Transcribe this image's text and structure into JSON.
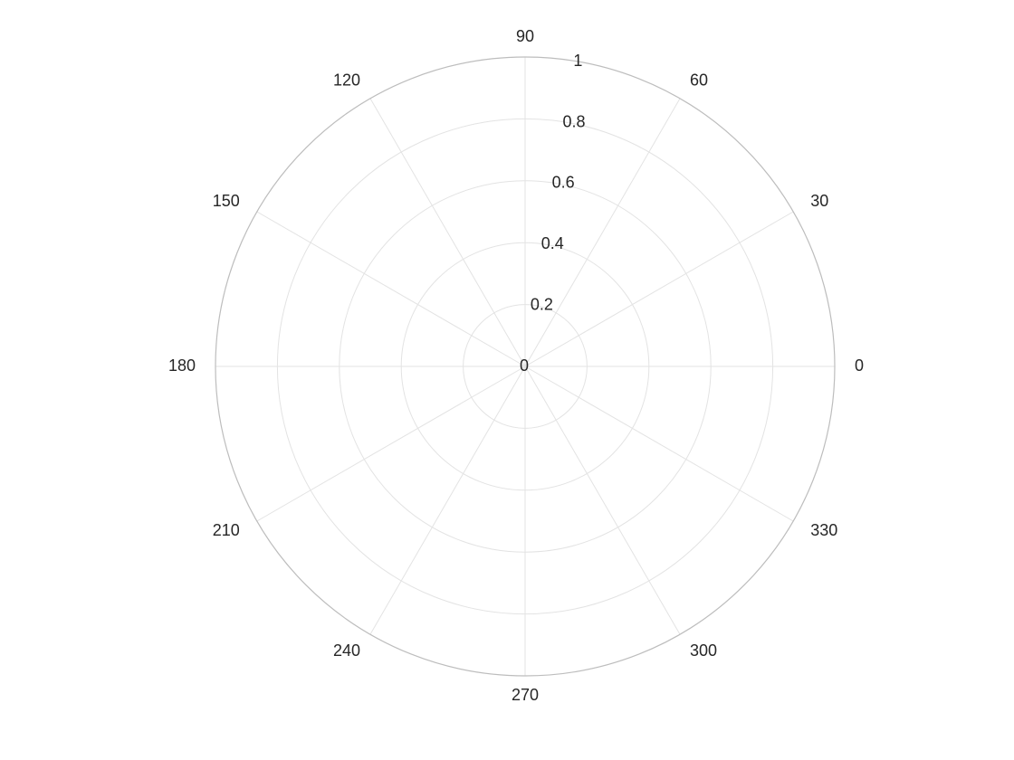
{
  "chart_data": {
    "type": "polar",
    "title": "",
    "theta_unit": "degrees",
    "theta_ticks": [
      0,
      30,
      60,
      90,
      120,
      150,
      180,
      210,
      240,
      270,
      300,
      330
    ],
    "theta_tick_labels": [
      "0",
      "30",
      "60",
      "90",
      "120",
      "150",
      "180",
      "210",
      "240",
      "270",
      "300",
      "330"
    ],
    "r_ticks": [
      0,
      0.2,
      0.4,
      0.6,
      0.8,
      1
    ],
    "r_tick_labels": [
      "0",
      "0.2",
      "0.4",
      "0.6",
      "0.8",
      "1"
    ],
    "rlim": [
      0,
      1
    ],
    "r_label_angle": 80,
    "theta_direction": "counterclockwise",
    "theta_zero_location": "right",
    "grid": true,
    "series": []
  },
  "colors": {
    "background": "#ffffff",
    "grid": "#e3e3e3",
    "outer_circle": "#bdbdbd",
    "text": "#262626"
  }
}
